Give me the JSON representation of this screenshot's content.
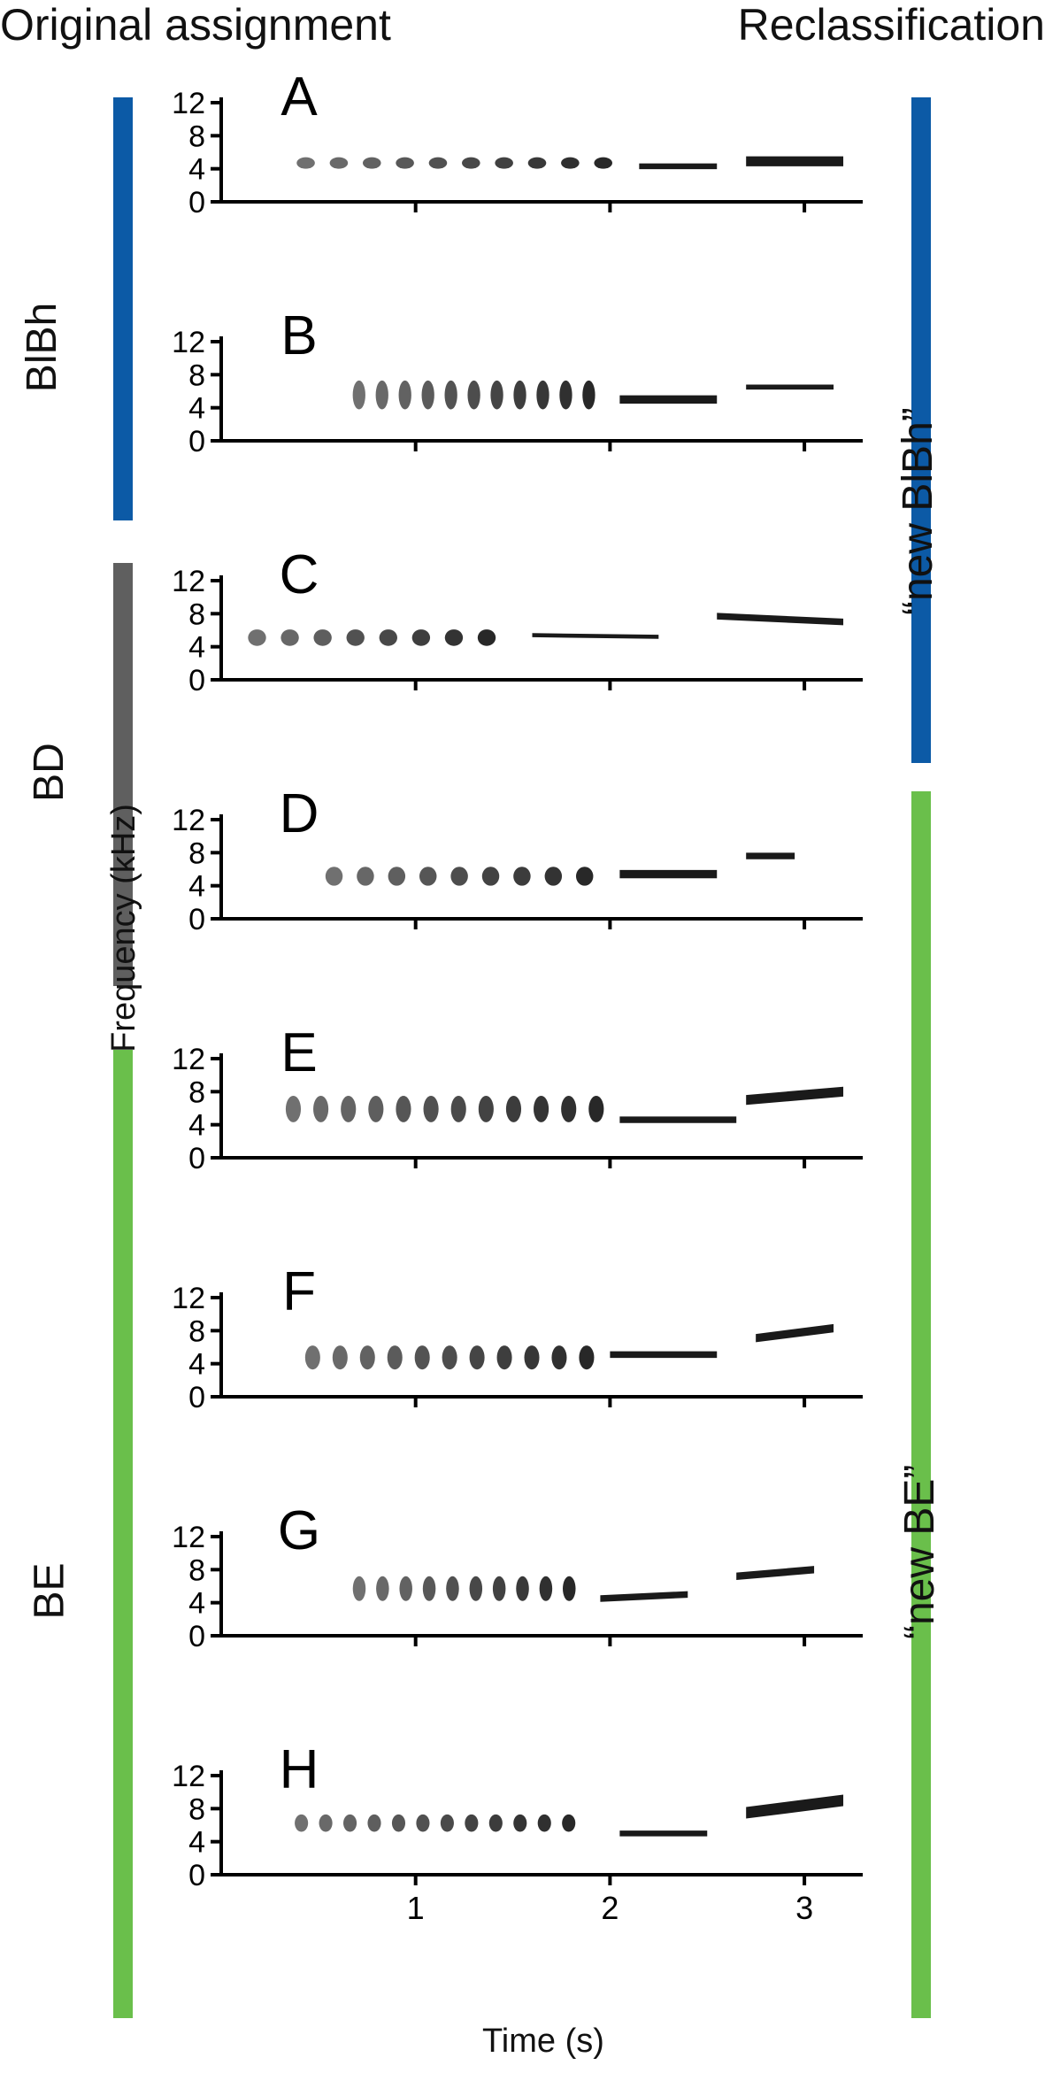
{
  "header": {
    "left": "Original assignment",
    "right": "Reclassification"
  },
  "original_groups": [
    {
      "label": "BlBh",
      "color": "#0c5aa6"
    },
    {
      "label": "BD",
      "color": "#5f5f5f"
    },
    {
      "label": "BE",
      "color": "#6abf4b"
    }
  ],
  "reclass_groups": [
    {
      "label": "“new BlBh”",
      "color": "#0c5aa6"
    },
    {
      "label": "“new BE”",
      "color": "#6abf4b"
    }
  ],
  "axes": {
    "ylabel": "Frequency (kHz)",
    "xlabel": "Time (s)",
    "yticks": [
      "0",
      "4",
      "8",
      "12"
    ],
    "xticks": [
      "1",
      "2",
      "3"
    ]
  },
  "chart_data": {
    "type": "spectrogram",
    "x_range_s": [
      0,
      3.3
    ],
    "y_range_khz": [
      0,
      12
    ],
    "panels": [
      {
        "letter": "A",
        "segments": [
          {
            "kind": "trill",
            "t0": 0.35,
            "t1": 2.05,
            "n": 10,
            "f_lo": 4.0,
            "f_hi": 5.4
          },
          {
            "kind": "tone",
            "t0": 2.15,
            "t1": 2.55,
            "f0": 4.3,
            "f1": 4.3,
            "bw": 0.7
          },
          {
            "kind": "tone",
            "t0": 2.7,
            "t1": 3.2,
            "f0": 4.9,
            "f1": 4.9,
            "bw": 1.2
          }
        ]
      },
      {
        "letter": "B",
        "segments": [
          {
            "kind": "trill",
            "t0": 0.65,
            "t1": 1.95,
            "n": 11,
            "f_lo": 3.8,
            "f_hi": 7.3
          },
          {
            "kind": "tone",
            "t0": 2.05,
            "t1": 2.55,
            "f0": 5.0,
            "f1": 5.0,
            "bw": 1.0
          },
          {
            "kind": "tone",
            "t0": 2.7,
            "t1": 3.15,
            "f0": 6.5,
            "f1": 6.5,
            "bw": 0.6
          }
        ]
      },
      {
        "letter": "C",
        "segments": [
          {
            "kind": "trill",
            "t0": 0.1,
            "t1": 1.45,
            "n": 8,
            "f_lo": 4.1,
            "f_hi": 6.1
          },
          {
            "kind": "tone",
            "t0": 1.6,
            "t1": 2.25,
            "f0": 5.4,
            "f1": 5.2,
            "bw": 0.5
          },
          {
            "kind": "tone",
            "t0": 2.55,
            "t1": 3.2,
            "f0": 7.7,
            "f1": 7.0,
            "bw": 0.8
          }
        ]
      },
      {
        "letter": "D",
        "segments": [
          {
            "kind": "trill",
            "t0": 0.5,
            "t1": 1.95,
            "n": 9,
            "f_lo": 4.0,
            "f_hi": 6.3
          },
          {
            "kind": "tone",
            "t0": 2.05,
            "t1": 2.55,
            "f0": 5.4,
            "f1": 5.4,
            "bw": 1.0
          },
          {
            "kind": "tone",
            "t0": 2.7,
            "t1": 2.95,
            "f0": 7.6,
            "f1": 7.6,
            "bw": 0.8
          }
        ]
      },
      {
        "letter": "E",
        "segments": [
          {
            "kind": "trill",
            "t0": 0.3,
            "t1": 2.0,
            "n": 12,
            "f_lo": 4.3,
            "f_hi": 7.5
          },
          {
            "kind": "tone",
            "t0": 2.05,
            "t1": 2.65,
            "f0": 4.6,
            "f1": 4.6,
            "bw": 0.8
          },
          {
            "kind": "tone",
            "t0": 2.7,
            "t1": 3.2,
            "f0": 7.0,
            "f1": 8.0,
            "bw": 1.2
          }
        ]
      },
      {
        "letter": "F",
        "segments": [
          {
            "kind": "trill",
            "t0": 0.4,
            "t1": 1.95,
            "n": 11,
            "f_lo": 3.3,
            "f_hi": 6.2
          },
          {
            "kind": "tone",
            "t0": 2.0,
            "t1": 2.55,
            "f0": 5.1,
            "f1": 5.1,
            "bw": 0.8
          },
          {
            "kind": "tone",
            "t0": 2.75,
            "t1": 3.15,
            "f0": 7.1,
            "f1": 8.3,
            "bw": 1.0
          }
        ]
      },
      {
        "letter": "G",
        "segments": [
          {
            "kind": "trill",
            "t0": 0.65,
            "t1": 1.85,
            "n": 10,
            "f_lo": 4.2,
            "f_hi": 7.2
          },
          {
            "kind": "tone",
            "t0": 1.95,
            "t1": 2.4,
            "f0": 4.5,
            "f1": 5.0,
            "bw": 0.8
          },
          {
            "kind": "tone",
            "t0": 2.65,
            "t1": 3.05,
            "f0": 7.2,
            "f1": 8.0,
            "bw": 0.9
          }
        ]
      },
      {
        "letter": "H",
        "segments": [
          {
            "kind": "trill",
            "t0": 0.35,
            "t1": 1.85,
            "n": 12,
            "f_lo": 5.2,
            "f_hi": 7.3
          },
          {
            "kind": "tone",
            "t0": 2.05,
            "t1": 2.5,
            "f0": 5.0,
            "f1": 5.0,
            "bw": 0.7
          },
          {
            "kind": "tone",
            "t0": 2.7,
            "t1": 3.2,
            "f0": 7.5,
            "f1": 9.0,
            "bw": 1.4
          }
        ]
      }
    ]
  }
}
